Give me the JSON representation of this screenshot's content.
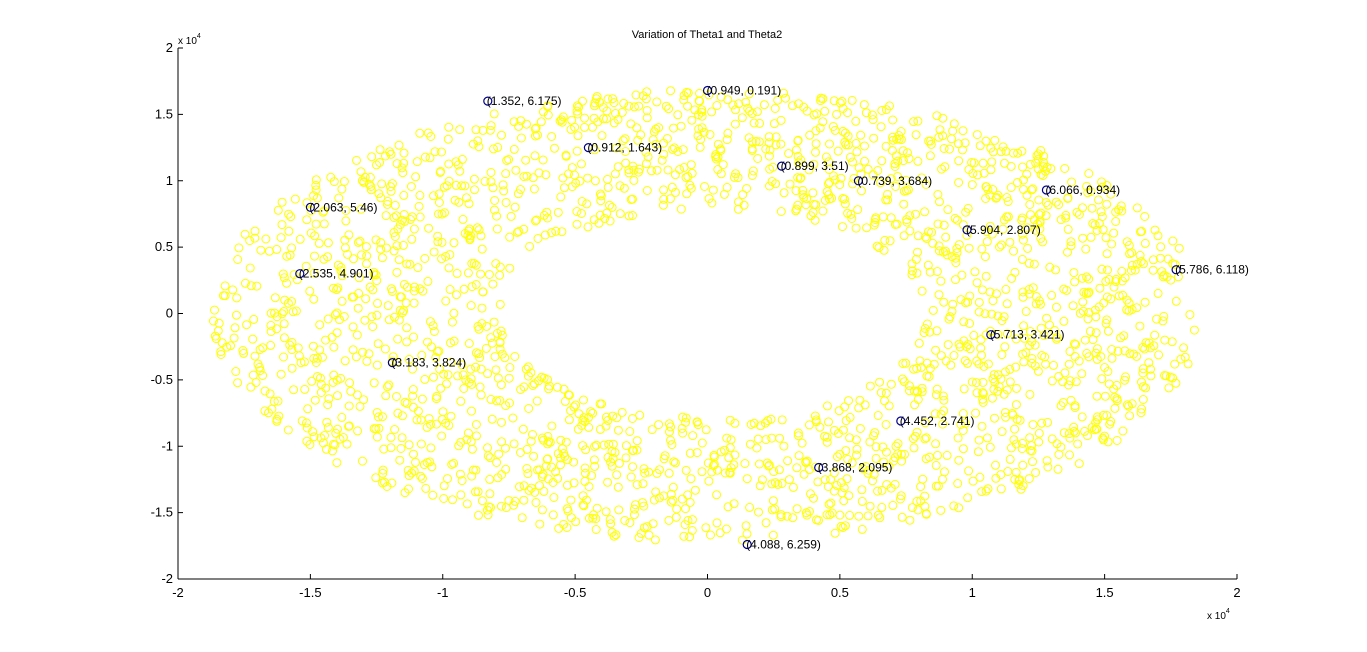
{
  "chart_data": {
    "type": "scatter",
    "title": "Variation of Theta1 and Theta2",
    "xlabel": "",
    "ylabel": "",
    "xlim": [
      -2,
      2
    ],
    "ylim": [
      -2,
      2
    ],
    "axis_multiplier": {
      "base": "x 10",
      "exponent": "4"
    },
    "xticks": [
      "-2",
      "-1.5",
      "-1",
      "-0.5",
      "0",
      "0.5",
      "1",
      "1.5",
      "2"
    ],
    "yticks": [
      "2",
      "1.5",
      "1",
      "0.5",
      "0",
      "-0.5",
      "-1",
      "-1.5",
      "-2"
    ],
    "grid": false,
    "legend": "none",
    "marker": "circle-open",
    "point_color": "#ffff00",
    "highlight_color": "#00008b",
    "point_cloud": {
      "shape": "annulus (ellipse ring)",
      "outer_x_range": [
        -1.87,
        1.87
      ],
      "outer_y_range": [
        -1.75,
        1.72
      ],
      "inner_x_semi_axis": 1.03,
      "inner_y_semi_axis": 1.03,
      "approx_count": 2200
    },
    "annotations": [
      {
        "x": -0.83,
        "y": 1.6,
        "label": "(1.352, 6.175)"
      },
      {
        "x": 0.0,
        "y": 1.68,
        "label": "(0.949, 0.191)"
      },
      {
        "x": -0.45,
        "y": 1.25,
        "label": "(0.912, 1.643)"
      },
      {
        "x": 0.28,
        "y": 1.11,
        "label": "(0.899, 3.51)"
      },
      {
        "x": 0.57,
        "y": 1.0,
        "label": "(0.739, 3.684)"
      },
      {
        "x": 1.28,
        "y": 0.93,
        "label": "(6.066, 0.934)"
      },
      {
        "x": -1.5,
        "y": 0.8,
        "label": "(2.063, 5.46)"
      },
      {
        "x": 0.98,
        "y": 0.63,
        "label": "(5.904, 2.807)"
      },
      {
        "x": -1.54,
        "y": 0.3,
        "label": "(2.535, 4.901)"
      },
      {
        "x": 1.77,
        "y": 0.33,
        "label": "(5.786, 6.118)"
      },
      {
        "x": 1.07,
        "y": -0.16,
        "label": "(5.713, 3.421)"
      },
      {
        "x": -1.19,
        "y": -0.37,
        "label": "(3.183, 3.824)"
      },
      {
        "x": 0.73,
        "y": -0.81,
        "label": "(4.452, 2.741)"
      },
      {
        "x": 0.42,
        "y": -1.16,
        "label": "(3.868, 2.095)"
      },
      {
        "x": 0.15,
        "y": -1.74,
        "label": "(4.088, 6.259)"
      }
    ]
  }
}
